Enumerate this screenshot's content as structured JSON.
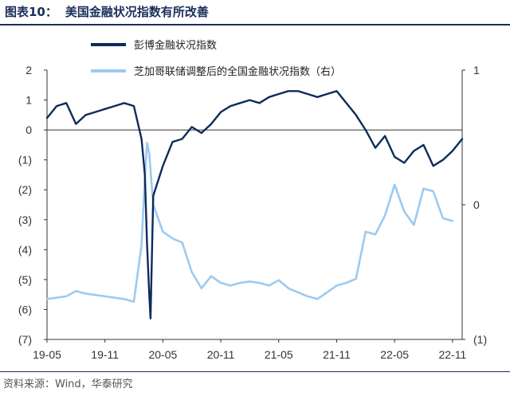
{
  "figure": {
    "number_label": "图表10：",
    "title": "美国金融状况指数有所改善",
    "source": "资料来源：Wind，华泰研究"
  },
  "colors": {
    "series1": "#0d2b5c",
    "series2": "#9ccaf0",
    "title": "#1a2e5a"
  },
  "chart_data": {
    "type": "line",
    "title": "美国金融状况指数有所改善",
    "x_tick_labels": [
      "19-05",
      "19-11",
      "20-05",
      "20-11",
      "21-05",
      "21-11",
      "22-05",
      "22-11"
    ],
    "x_range": [
      "2019-05",
      "2022-12"
    ],
    "y_left": {
      "range": [
        -7,
        2
      ],
      "ticks": [
        2,
        1,
        0,
        -1,
        -2,
        -3,
        -4,
        -5,
        -6,
        -7
      ],
      "tick_labels": [
        "2",
        "1",
        "0",
        "(1)",
        "(2)",
        "(3)",
        "(4)",
        "(5)",
        "(6)",
        "(7)"
      ]
    },
    "y_right": {
      "range": [
        -1,
        1
      ],
      "ticks": [
        1,
        0,
        -1
      ],
      "tick_labels": [
        "1",
        "0",
        "(1)"
      ]
    },
    "legend_position": "top-center",
    "grid": false,
    "series": [
      {
        "name": "彭博金融状况指数",
        "axis": "left",
        "points": [
          [
            "2019-05",
            0.4
          ],
          [
            "2019-06",
            0.8
          ],
          [
            "2019-07",
            0.9
          ],
          [
            "2019-08",
            0.2
          ],
          [
            "2019-09",
            0.5
          ],
          [
            "2019-10",
            0.6
          ],
          [
            "2019-11",
            0.7
          ],
          [
            "2019-12",
            0.8
          ],
          [
            "2020-01",
            0.9
          ],
          [
            "2020-02",
            0.8
          ],
          [
            "2020-02-25",
            -0.3
          ],
          [
            "2020-03-05",
            -1.5
          ],
          [
            "2020-03-12",
            -3.8
          ],
          [
            "2020-03-19",
            -5.5
          ],
          [
            "2020-03-23",
            -6.3
          ],
          [
            "2020-04",
            -2.2
          ],
          [
            "2020-05",
            -1.2
          ],
          [
            "2020-06",
            -0.4
          ],
          [
            "2020-07",
            -0.3
          ],
          [
            "2020-08",
            0.1
          ],
          [
            "2020-09",
            -0.1
          ],
          [
            "2020-10",
            0.2
          ],
          [
            "2020-11",
            0.6
          ],
          [
            "2020-12",
            0.8
          ],
          [
            "2021-01",
            0.9
          ],
          [
            "2021-02",
            1.0
          ],
          [
            "2021-03",
            0.9
          ],
          [
            "2021-04",
            1.1
          ],
          [
            "2021-05",
            1.2
          ],
          [
            "2021-06",
            1.3
          ],
          [
            "2021-07",
            1.3
          ],
          [
            "2021-08",
            1.2
          ],
          [
            "2021-09",
            1.1
          ],
          [
            "2021-10",
            1.2
          ],
          [
            "2021-11",
            1.3
          ],
          [
            "2021-12",
            0.9
          ],
          [
            "2022-01",
            0.5
          ],
          [
            "2022-02",
            0.0
          ],
          [
            "2022-03",
            -0.6
          ],
          [
            "2022-04",
            -0.2
          ],
          [
            "2022-05",
            -0.9
          ],
          [
            "2022-06",
            -1.1
          ],
          [
            "2022-07",
            -0.7
          ],
          [
            "2022-08",
            -0.5
          ],
          [
            "2022-09",
            -1.2
          ],
          [
            "2022-10",
            -1.0
          ],
          [
            "2022-11",
            -0.7
          ],
          [
            "2022-12",
            -0.3
          ]
        ]
      },
      {
        "name": "芝加哥联储调整后的全国金融状况指数（右）",
        "axis": "right",
        "points": [
          [
            "2019-05",
            -0.7
          ],
          [
            "2019-06",
            -0.69
          ],
          [
            "2019-07",
            -0.68
          ],
          [
            "2019-08",
            -0.64
          ],
          [
            "2019-09",
            -0.66
          ],
          [
            "2019-10",
            -0.67
          ],
          [
            "2019-11",
            -0.68
          ],
          [
            "2019-12",
            -0.69
          ],
          [
            "2020-01",
            -0.7
          ],
          [
            "2020-02",
            -0.72
          ],
          [
            "2020-02-25",
            -0.3
          ],
          [
            "2020-03-05",
            0.2
          ],
          [
            "2020-03-12",
            0.46
          ],
          [
            "2020-03-19",
            0.38
          ],
          [
            "2020-04",
            0.0
          ],
          [
            "2020-05",
            -0.2
          ],
          [
            "2020-06",
            -0.25
          ],
          [
            "2020-07",
            -0.28
          ],
          [
            "2020-08",
            -0.5
          ],
          [
            "2020-09",
            -0.62
          ],
          [
            "2020-10",
            -0.53
          ],
          [
            "2020-11",
            -0.58
          ],
          [
            "2020-12",
            -0.6
          ],
          [
            "2021-01",
            -0.58
          ],
          [
            "2021-02",
            -0.57
          ],
          [
            "2021-03",
            -0.58
          ],
          [
            "2021-04",
            -0.6
          ],
          [
            "2021-05",
            -0.56
          ],
          [
            "2021-06",
            -0.62
          ],
          [
            "2021-07",
            -0.65
          ],
          [
            "2021-08",
            -0.68
          ],
          [
            "2021-09",
            -0.7
          ],
          [
            "2021-10",
            -0.65
          ],
          [
            "2021-11",
            -0.6
          ],
          [
            "2021-12",
            -0.58
          ],
          [
            "2022-01",
            -0.55
          ],
          [
            "2022-02",
            -0.2
          ],
          [
            "2022-03",
            -0.22
          ],
          [
            "2022-04",
            -0.08
          ],
          [
            "2022-05",
            0.15
          ],
          [
            "2022-06",
            -0.05
          ],
          [
            "2022-07",
            -0.15
          ],
          [
            "2022-08",
            0.12
          ],
          [
            "2022-09",
            0.1
          ],
          [
            "2022-10",
            -0.1
          ],
          [
            "2022-11",
            -0.12
          ]
        ]
      }
    ]
  }
}
